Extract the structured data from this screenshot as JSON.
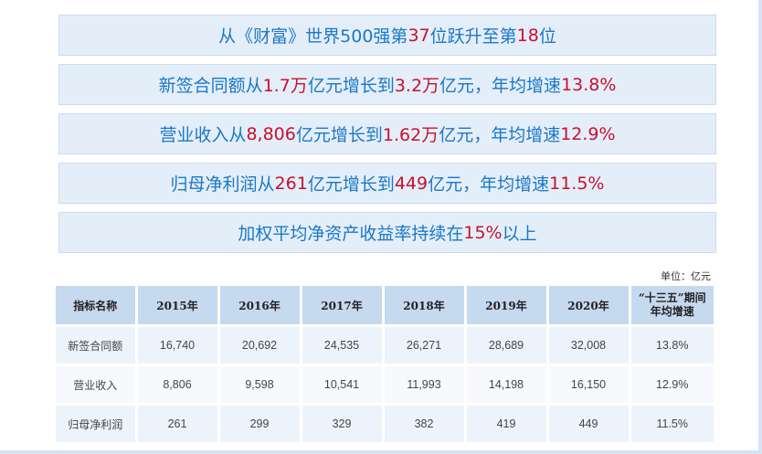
{
  "banners": [
    [
      {
        "t": "从《财富》世界500强第",
        "hl": false
      },
      {
        "t": "37",
        "hl": true
      },
      {
        "t": "位跃升至第",
        "hl": false
      },
      {
        "t": "18",
        "hl": true
      },
      {
        "t": "位",
        "hl": false
      }
    ],
    [
      {
        "t": "新签合同额从",
        "hl": false
      },
      {
        "t": "1.7万",
        "hl": true
      },
      {
        "t": "亿元增长到",
        "hl": false
      },
      {
        "t": "3.2万",
        "hl": true
      },
      {
        "t": "亿元，年均增速",
        "hl": false
      },
      {
        "t": "13.8%",
        "hl": true
      }
    ],
    [
      {
        "t": "营业收入从",
        "hl": false
      },
      {
        "t": "8,806",
        "hl": true
      },
      {
        "t": "亿元增长到",
        "hl": false
      },
      {
        "t": "1.62万",
        "hl": true
      },
      {
        "t": "亿元，年均增速",
        "hl": false
      },
      {
        "t": "12.9%",
        "hl": true
      }
    ],
    [
      {
        "t": "归母净利润从",
        "hl": false
      },
      {
        "t": "261",
        "hl": true
      },
      {
        "t": "亿元增长到",
        "hl": false
      },
      {
        "t": "449",
        "hl": true
      },
      {
        "t": "亿元，年均增速",
        "hl": false
      },
      {
        "t": "11.5%",
        "hl": true
      }
    ],
    [
      {
        "t": "加权平均净资产收益率持续在",
        "hl": false
      },
      {
        "t": "15%",
        "hl": true
      },
      {
        "t": "以上",
        "hl": false
      }
    ]
  ],
  "unit_label": "单位：亿元",
  "table": {
    "headers": [
      "指标名称",
      "2015年",
      "2016年",
      "2017年",
      "2018年",
      "2019年",
      "2020年",
      "“十三五”期间\n年均增速"
    ],
    "rows": [
      [
        "新签合同额",
        "16,740",
        "20,692",
        "24,535",
        "26,271",
        "28,689",
        "32,008",
        "13.8%"
      ],
      [
        "营业收入",
        "8,806",
        "9,598",
        "10,541",
        "11,993",
        "14,198",
        "16,150",
        "12.9%"
      ],
      [
        "归母净利润",
        "261",
        "299",
        "329",
        "382",
        "419",
        "449",
        "11.5%"
      ]
    ]
  },
  "colors": {
    "highlight": "#c8102e",
    "text_blue": "#1a78c8",
    "banner_bg": "#e4eef9"
  }
}
